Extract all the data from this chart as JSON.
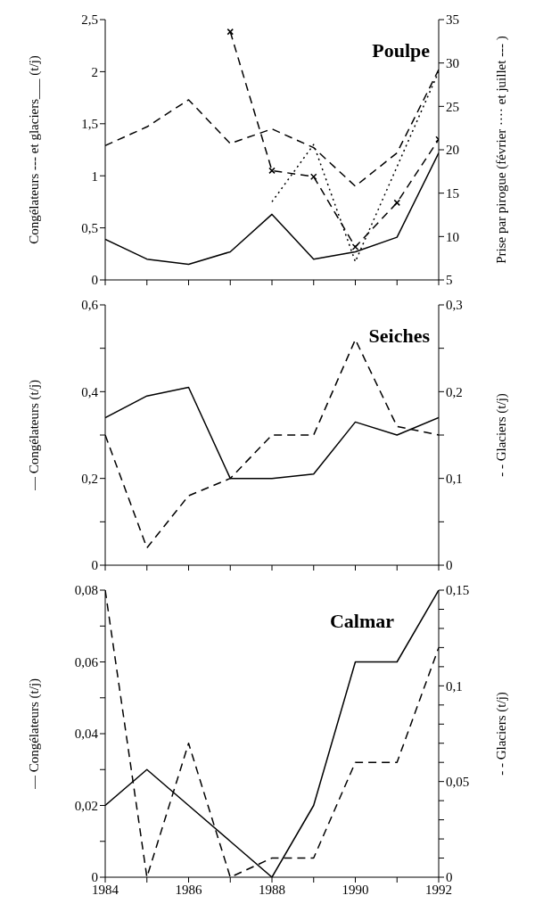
{
  "chart_data": [
    {
      "type": "line",
      "title": "Poulpe",
      "ylabel": "Congélateurs --- et glaciers___ (t/j)",
      "y2label": "Prise par pirogue (février ···· et juillet --- )",
      "x": [
        1984,
        1985,
        1986,
        1987,
        1988,
        1989,
        1990,
        1991,
        1992
      ],
      "xlim": [
        1984,
        1992
      ],
      "xticks": [
        {
          "value": 1984,
          "label": null
        },
        {
          "value": 1985,
          "label": null
        },
        {
          "value": 1986,
          "label": null
        },
        {
          "value": 1987,
          "label": null
        },
        {
          "value": 1988,
          "label": null
        },
        {
          "value": 1989,
          "label": null
        },
        {
          "value": 1990,
          "label": null
        },
        {
          "value": 1991,
          "label": null
        },
        {
          "value": 1992,
          "label": null
        }
      ],
      "ylim": [
        0,
        2.5
      ],
      "yticks": [
        0,
        {
          "value": 0.5,
          "label": "0,5"
        },
        1,
        {
          "value": 1.5,
          "label": "1,5"
        },
        2,
        {
          "value": 2.5,
          "label": "2,5"
        }
      ],
      "y2lim": [
        5,
        35
      ],
      "y2ticks": [
        5,
        10,
        15,
        20,
        25,
        30,
        35
      ],
      "tick_labels": "y",
      "grid": false,
      "legend": false,
      "series": [
        {
          "color": "#000000",
          "line_style": "solid",
          "values": [
            0.39,
            0.2,
            0.15,
            0.27,
            0.63,
            0.2,
            0.27,
            0.41,
            1.22
          ]
        },
        {
          "color": "#000000",
          "line_style": "dashed",
          "values": [
            1.29,
            1.47,
            1.73,
            1.31,
            1.45,
            1.27,
            0.9,
            1.22,
            2.02
          ]
        },
        {
          "color": "#000000",
          "line_style": "dotted",
          "axis": "y2",
          "values": [
            null,
            null,
            null,
            null,
            14,
            20.6,
            7.1,
            null,
            29
          ]
        },
        {
          "color": "#000000",
          "line_style": "dashed",
          "marker": "cross",
          "axis": "y2",
          "values": [
            null,
            null,
            null,
            33.6,
            17.6,
            16.9,
            8.8,
            13.9,
            21.2
          ]
        }
      ]
    },
    {
      "type": "line",
      "title": "Seiches",
      "ylabel": "— Congélateurs (t/j)",
      "y2label": "- - Glaciers (t/j)",
      "x": [
        1984,
        1985,
        1986,
        1987,
        1988,
        1989,
        1990,
        1991,
        1992
      ],
      "xlim": [
        1984,
        1992
      ],
      "xticks": [
        {
          "value": 1984,
          "label": null
        },
        {
          "value": 1985,
          "label": null
        },
        {
          "value": 1986,
          "label": null
        },
        {
          "value": 1987,
          "label": null
        },
        {
          "value": 1988,
          "label": null
        },
        {
          "value": 1989,
          "label": null
        },
        {
          "value": 1990,
          "label": null
        },
        {
          "value": 1991,
          "label": null
        },
        {
          "value": 1992,
          "label": null
        }
      ],
      "ylim": [
        0,
        0.6
      ],
      "yticks": [
        0,
        {
          "value": 0.1,
          "label": null
        },
        {
          "value": 0.2,
          "label": "0,2"
        },
        {
          "value": 0.3,
          "label": null
        },
        {
          "value": 0.4,
          "label": "0,4"
        },
        {
          "value": 0.5,
          "label": null
        },
        {
          "value": 0.6,
          "label": "0,6"
        }
      ],
      "y2lim": [
        0,
        0.3
      ],
      "y2ticks": [
        0,
        {
          "value": 0.05,
          "label": null
        },
        {
          "value": 0.1,
          "label": "0,1"
        },
        {
          "value": 0.15,
          "label": null
        },
        {
          "value": 0.2,
          "label": "0,2"
        },
        {
          "value": 0.25,
          "label": null
        },
        {
          "value": 0.3,
          "label": "0,3"
        }
      ],
      "tick_labels": "y",
      "grid": false,
      "legend": false,
      "series": [
        {
          "color": "#000000",
          "line_style": "solid",
          "values": [
            0.34,
            0.39,
            0.41,
            0.2,
            0.2,
            0.21,
            0.33,
            0.3,
            0.34
          ]
        },
        {
          "color": "#000000",
          "line_style": "dashed",
          "axis": "y2",
          "values": [
            0.15,
            0.02,
            0.08,
            0.1,
            0.15,
            0.15,
            0.26,
            0.16,
            0.15
          ]
        }
      ]
    },
    {
      "type": "line",
      "title": "Calmar",
      "ylabel": "— Congélateurs (t/j)",
      "y2label": "- - Glaciers (t/j)",
      "x": [
        1984,
        1985,
        1986,
        1987,
        1988,
        1989,
        1990,
        1991,
        1992
      ],
      "xlim": [
        1984,
        1992
      ],
      "xticks": [
        1984,
        {
          "value": 1985,
          "label": null
        },
        1986,
        {
          "value": 1987,
          "label": null
        },
        1988,
        {
          "value": 1989,
          "label": null
        },
        1990,
        {
          "value": 1991,
          "label": null
        },
        1992
      ],
      "ylim": [
        0,
        0.08
      ],
      "yticks": [
        0,
        {
          "value": 0.01,
          "label": null
        },
        {
          "value": 0.02,
          "label": "0,02"
        },
        {
          "value": 0.03,
          "label": null
        },
        {
          "value": 0.04,
          "label": "0,04"
        },
        {
          "value": 0.05,
          "label": null
        },
        {
          "value": 0.06,
          "label": "0,06"
        },
        {
          "value": 0.07,
          "label": null
        },
        {
          "value": 0.08,
          "label": "0,08"
        }
      ],
      "y2lim": [
        0,
        0.15
      ],
      "y2ticks": [
        0,
        {
          "value": 0.01,
          "label": null
        },
        {
          "value": 0.02,
          "label": null
        },
        {
          "value": 0.03,
          "label": null
        },
        {
          "value": 0.04,
          "label": null
        },
        {
          "value": 0.05,
          "label": "0,05"
        },
        {
          "value": 0.06,
          "label": null
        },
        {
          "value": 0.07,
          "label": null
        },
        {
          "value": 0.08,
          "label": null
        },
        {
          "value": 0.09,
          "label": null
        },
        {
          "value": 0.1,
          "label": "0,1"
        },
        {
          "value": 0.11,
          "label": null
        },
        {
          "value": 0.12,
          "label": null
        },
        {
          "value": 0.13,
          "label": null
        },
        {
          "value": 0.14,
          "label": null
        },
        {
          "value": 0.15,
          "label": "0,15"
        }
      ],
      "grid": false,
      "legend": false,
      "series": [
        {
          "color": "#000000",
          "line_style": "solid",
          "values": [
            0.02,
            0.03,
            0.02,
            0.01,
            0,
            0.02,
            0.06,
            0.06,
            0.08
          ]
        },
        {
          "color": "#000000",
          "line_style": "dashed",
          "axis": "y2",
          "values": [
            0.15,
            0,
            0.07,
            0,
            0.01,
            0.01,
            0.06,
            0.06,
            0.12
          ]
        }
      ]
    }
  ]
}
